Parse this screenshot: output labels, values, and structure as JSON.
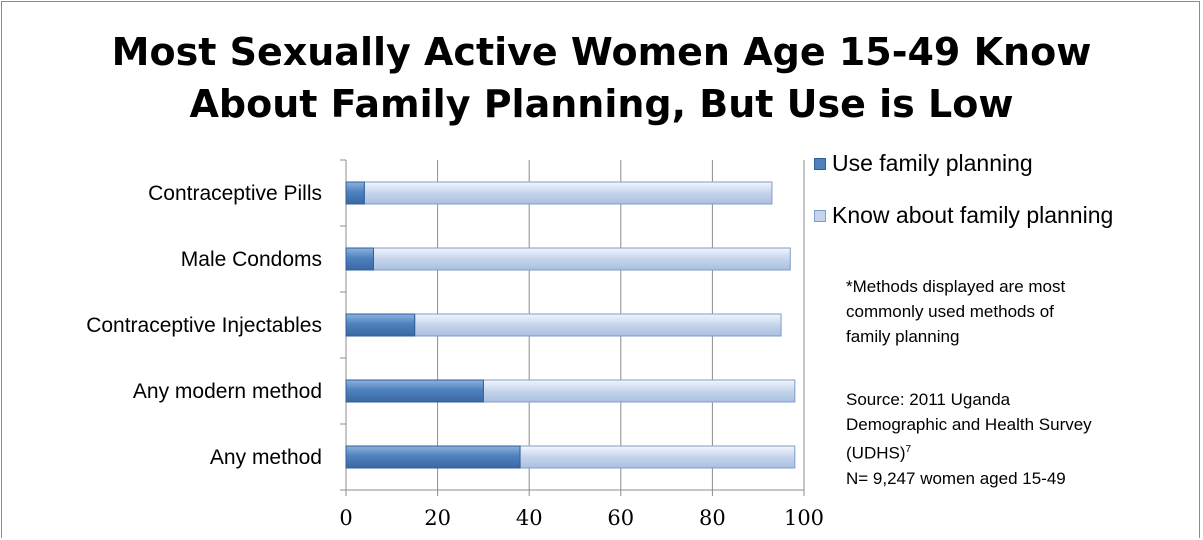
{
  "chart_data": {
    "type": "bar",
    "orientation": "horizontal",
    "title_lines": [
      "Most Sexually Active Women Age 15-49 Know",
      "About Family Planning, But Use is Low"
    ],
    "categories": [
      "Any method",
      "Any modern method",
      "Contraceptive Injectables",
      "Male Condoms",
      "Contraceptive Pills"
    ],
    "series": [
      {
        "name": "Use family planning",
        "values": [
          38,
          30,
          15,
          6,
          4
        ],
        "color": "#4f81bd"
      },
      {
        "name": "Know about family planning",
        "values": [
          98,
          98,
          95,
          97,
          93
        ],
        "color": "#c5d4ec"
      }
    ],
    "xlim": [
      0,
      100
    ],
    "xticks": [
      "0",
      "20",
      "40",
      "60",
      "80",
      "100"
    ],
    "grid": true,
    "legend_position": "right"
  },
  "notes": {
    "methods_note": [
      "*Methods displayed are most",
      "commonly used methods of",
      "family planning"
    ],
    "source_lines": [
      "Source: 2011 Uganda",
      "Demographic and Health Survey"
    ],
    "source_udhs": "(UDHS)",
    "source_ref": "7",
    "sample": "N= 9,247 women aged 15-49"
  }
}
